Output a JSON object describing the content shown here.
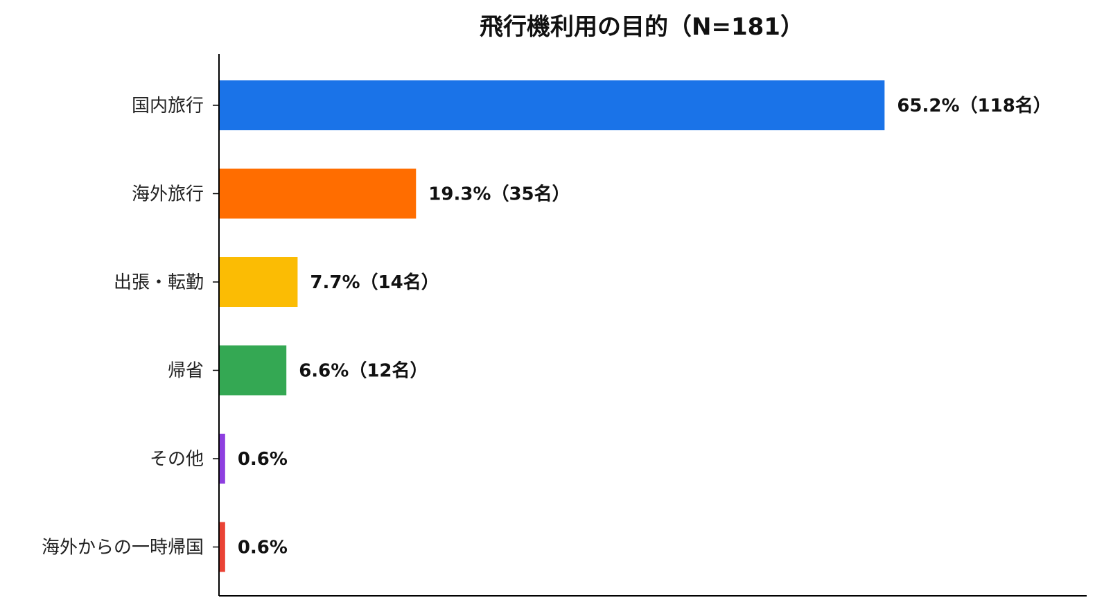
{
  "chart_data": {
    "type": "bar",
    "orientation": "horizontal",
    "title": "飛行機利用の目的（N=181）",
    "xlabel": "",
    "ylabel": "",
    "xlim": [
      0,
      85
    ],
    "grid": false,
    "legend": "none",
    "categories": [
      "国内旅行",
      "海外旅行",
      "出張・転勤",
      "帰省",
      "その他",
      "海外からの一時帰国"
    ],
    "values": [
      65.2,
      19.3,
      7.7,
      6.6,
      0.6,
      0.6
    ],
    "value_labels": [
      "65.2%（118名）",
      "19.3%（35名）",
      "7.7%（14名）",
      "6.6%（12名）",
      "0.6%",
      "0.6%"
    ],
    "colors": [
      "#1a73e8",
      "#ff6d00",
      "#fbbc04",
      "#34a853",
      "#8e3fe0",
      "#ea4335"
    ]
  }
}
